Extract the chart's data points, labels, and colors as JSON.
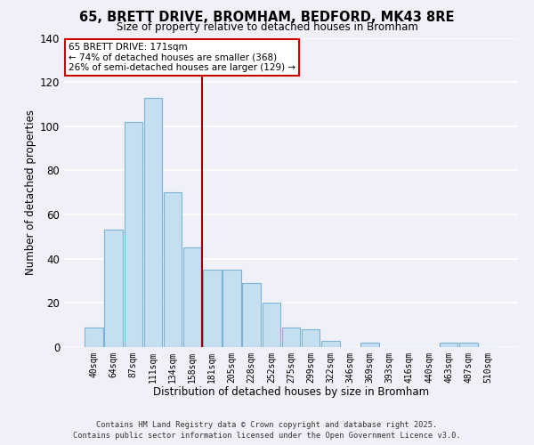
{
  "title": "65, BRETT DRIVE, BROMHAM, BEDFORD, MK43 8RE",
  "subtitle": "Size of property relative to detached houses in Bromham",
  "xlabel": "Distribution of detached houses by size in Bromham",
  "ylabel": "Number of detached properties",
  "bar_color": "#c5dff0",
  "bar_edge_color": "#7ab4d4",
  "background_color": "#f0f0f8",
  "grid_color": "#ffffff",
  "categories": [
    "40sqm",
    "64sqm",
    "87sqm",
    "111sqm",
    "134sqm",
    "158sqm",
    "181sqm",
    "205sqm",
    "228sqm",
    "252sqm",
    "275sqm",
    "299sqm",
    "322sqm",
    "346sqm",
    "369sqm",
    "393sqm",
    "416sqm",
    "440sqm",
    "463sqm",
    "487sqm",
    "510sqm"
  ],
  "values": [
    9,
    53,
    102,
    113,
    70,
    45,
    35,
    35,
    29,
    20,
    9,
    8,
    3,
    0,
    2,
    0,
    0,
    0,
    2,
    2,
    0
  ],
  "ylim": [
    0,
    140
  ],
  "yticks": [
    0,
    20,
    40,
    60,
    80,
    100,
    120,
    140
  ],
  "property_line_x": 5.5,
  "property_line_color": "#990000",
  "annotation_line1": "65 BRETT DRIVE: 171sqm",
  "annotation_line2": "← 74% of detached houses are smaller (368)",
  "annotation_line3": "26% of semi-detached houses are larger (129) →",
  "footer_line1": "Contains HM Land Registry data © Crown copyright and database right 2025.",
  "footer_line2": "Contains public sector information licensed under the Open Government Licence v3.0."
}
